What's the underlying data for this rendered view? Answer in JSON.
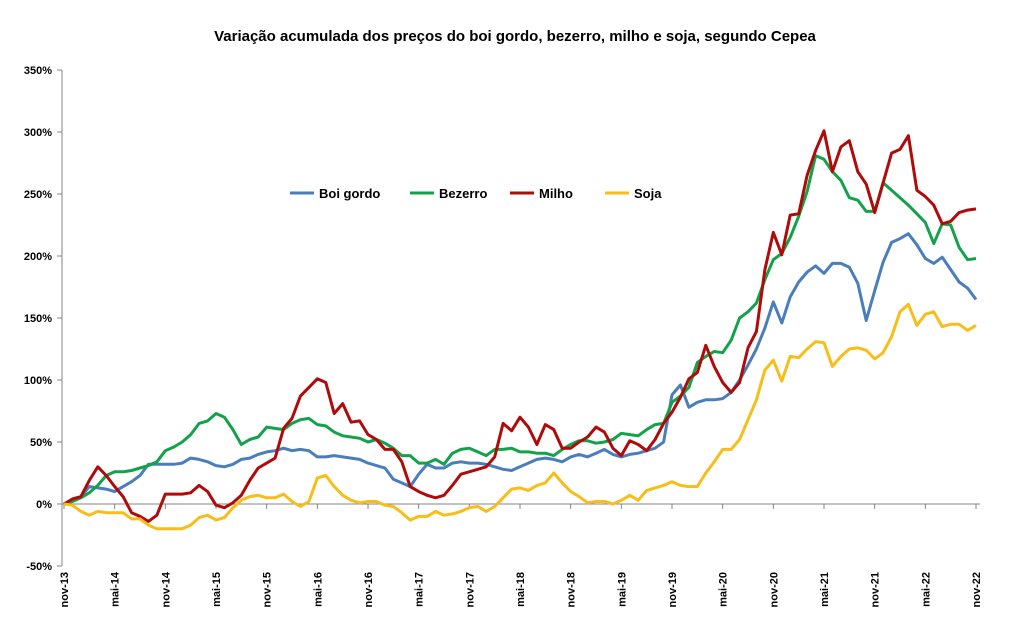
{
  "chart_data": {
    "type": "line",
    "title": "Variação acumulada dos preços do boi gordo, bezerro, milho e soja, segundo Cepea",
    "xlabel": "",
    "ylabel": "",
    "ylim": [
      -50,
      350
    ],
    "yticks": [
      -50,
      0,
      50,
      100,
      150,
      200,
      250,
      300,
      350
    ],
    "ytick_labels": [
      "-50%",
      "0%",
      "50%",
      "100%",
      "150%",
      "200%",
      "250%",
      "300%",
      "350%"
    ],
    "x_start": "nov-13",
    "x_end": "nov-22",
    "x_frequency": "monthly",
    "xtick_every_months": 6,
    "xtick_labels": [
      "nov-13",
      "mai-14",
      "nov-14",
      "mai-15",
      "nov-15",
      "mai-16",
      "nov-16",
      "mai-17",
      "nov-17",
      "mai-18",
      "nov-18",
      "mai-19",
      "nov-19",
      "mai-20",
      "nov-20",
      "mai-21",
      "nov-21",
      "mai-22",
      "nov-22"
    ],
    "grid": false,
    "legend_position": "inside-top-center",
    "series": [
      {
        "name": "Boi gordo",
        "color": "#4a7ebb",
        "values": [
          0,
          3,
          6,
          14,
          13,
          12,
          10,
          14,
          18,
          23,
          32,
          32,
          32,
          32,
          33,
          37,
          36,
          34,
          31,
          30,
          32,
          36,
          37,
          40,
          42,
          43,
          45,
          43,
          44,
          43,
          38,
          38,
          39,
          38,
          37,
          36,
          33,
          31,
          29,
          20,
          17,
          14,
          24,
          32,
          29,
          29,
          33,
          34,
          33,
          33,
          32,
          30,
          28,
          27,
          30,
          33,
          36,
          37,
          36,
          34,
          38,
          40,
          38,
          41,
          44,
          40,
          38,
          40,
          41,
          43,
          45,
          50,
          88,
          96,
          78,
          82,
          84,
          84,
          85,
          90,
          100,
          112,
          125,
          142,
          163,
          146,
          167,
          179,
          187,
          192,
          186,
          194,
          194,
          191,
          178,
          148,
          172,
          195,
          211,
          214,
          218,
          209,
          198,
          194,
          199,
          189,
          179,
          174,
          165
        ]
      },
      {
        "name": "Bezerro",
        "color": "#13a24a",
        "values": [
          0,
          2,
          5,
          9,
          15,
          23,
          26,
          26,
          27,
          29,
          31,
          34,
          43,
          46,
          50,
          56,
          65,
          67,
          73,
          70,
          60,
          48,
          52,
          54,
          62,
          61,
          60,
          65,
          68,
          69,
          64,
          63,
          58,
          55,
          54,
          53,
          50,
          52,
          49,
          45,
          39,
          39,
          33,
          33,
          36,
          32,
          41,
          44,
          45,
          42,
          39,
          44,
          44,
          45,
          42,
          42,
          41,
          41,
          39,
          44,
          48,
          51,
          51,
          49,
          50,
          52,
          57,
          56,
          55,
          60,
          64,
          65,
          82,
          87,
          94,
          114,
          119,
          123,
          122,
          132,
          150,
          155,
          162,
          181,
          197,
          202,
          215,
          232,
          252,
          281,
          278,
          268,
          261,
          247,
          245,
          236,
          236,
          259,
          253,
          247,
          241,
          234,
          227,
          210,
          226,
          225,
          207,
          197,
          198
        ]
      },
      {
        "name": "Milho",
        "color": "#b00a0a",
        "values": [
          0,
          4,
          6,
          19,
          30,
          23,
          14,
          6,
          -7,
          -10,
          -14,
          -9,
          8,
          8,
          8,
          9,
          15,
          10,
          -1,
          -3,
          1,
          7,
          19,
          29,
          33,
          37,
          61,
          69,
          87,
          94,
          101,
          98,
          73,
          81,
          66,
          67,
          56,
          52,
          44,
          44,
          34,
          14,
          10,
          7,
          5,
          7,
          15,
          24,
          26,
          28,
          30,
          38,
          65,
          59,
          70,
          62,
          48,
          64,
          60,
          45,
          45,
          50,
          54,
          62,
          58,
          45,
          39,
          51,
          48,
          43,
          52,
          65,
          74,
          86,
          101,
          106,
          128,
          111,
          98,
          90,
          98,
          126,
          139,
          189,
          219,
          201,
          233,
          234,
          265,
          285,
          301,
          268,
          288,
          293,
          268,
          258,
          235,
          259,
          283,
          286,
          297,
          253,
          248,
          241,
          226,
          228,
          235,
          237,
          238
        ]
      },
      {
        "name": "Soja",
        "color": "#f7bd18",
        "values": [
          0,
          -1,
          -6,
          -9,
          -6,
          -7,
          -7,
          -7,
          -12,
          -12,
          -17,
          -20,
          -20,
          -20,
          -20,
          -17,
          -11,
          -9,
          -13,
          -11,
          -3,
          3,
          6,
          7,
          5,
          5,
          8,
          2,
          -2,
          2,
          21,
          23,
          14,
          7,
          3,
          1,
          2,
          2,
          -1,
          -2,
          -7,
          -13,
          -10,
          -10,
          -6,
          -9,
          -8,
          -6,
          -3,
          -2,
          -6,
          -2,
          5,
          12,
          13,
          11,
          15,
          17,
          25,
          17,
          10,
          6,
          1,
          2,
          2,
          0,
          3,
          7,
          3,
          11,
          13,
          15,
          18,
          15,
          14,
          14,
          25,
          34,
          44,
          44,
          52,
          68,
          84,
          108,
          116,
          99,
          119,
          118,
          125,
          131,
          130,
          111,
          119,
          125,
          126,
          124,
          117,
          122,
          135,
          155,
          161,
          144,
          153,
          155,
          143,
          145,
          145,
          140,
          144
        ]
      }
    ]
  }
}
